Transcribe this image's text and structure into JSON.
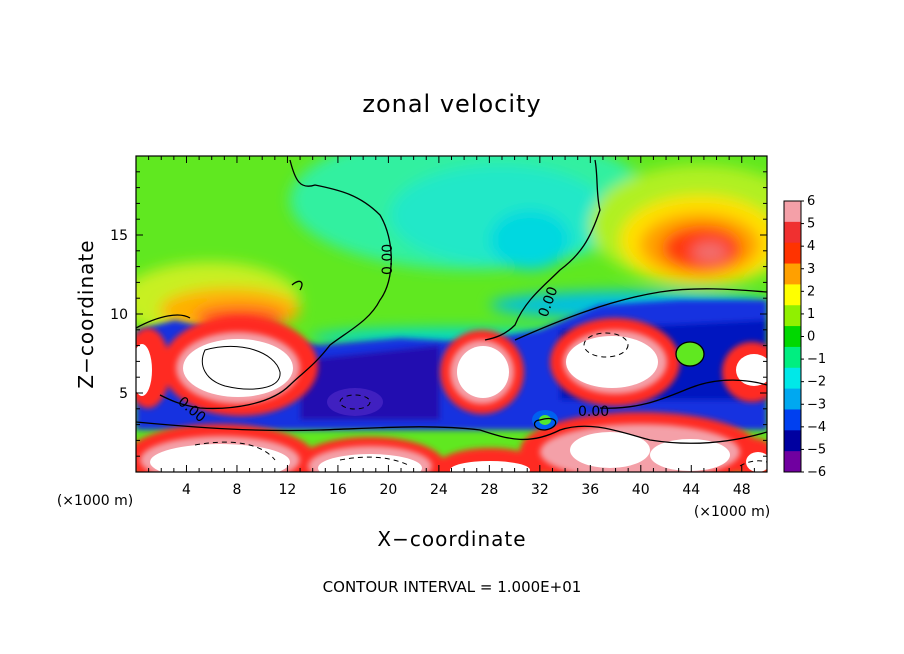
{
  "chart_data": {
    "type": "heatmap",
    "title": "zonal velocity",
    "xlabel": "X−coordinate",
    "ylabel": "Z−coordinate",
    "xlim": [
      0,
      50
    ],
    "ylim": [
      0,
      20
    ],
    "x_ticks": [
      4,
      8,
      12,
      16,
      20,
      24,
      28,
      32,
      36,
      40,
      44,
      48
    ],
    "y_ticks": [
      5,
      10,
      15
    ],
    "x_unit_label": "(×1000 m)",
    "x_unit_label_right": "(×1000 m)",
    "colorbar": {
      "range": [
        -6,
        6
      ],
      "ticks": [
        6,
        5,
        4,
        3,
        2,
        1,
        0,
        -1,
        -2,
        -3,
        -4,
        -5,
        -6
      ],
      "tick_labels": [
        "6",
        "5",
        "4",
        "3",
        "2",
        "1",
        "0",
        "−1",
        "−2",
        "−3",
        "−4",
        "−5",
        "−6"
      ],
      "colors": [
        "#f4a0a8",
        "#f03030",
        "#ff3300",
        "#ffa000",
        "#ffff00",
        "#90f000",
        "#00d800",
        "#00ee80",
        "#00e8e8",
        "#00a8f0",
        "#0040f0",
        "#0000a0",
        "#7000a0"
      ]
    },
    "contour_labels": [
      "0.00",
      "0.00",
      "0.00",
      "0.00"
    ],
    "contour_interval_text": "CONTOUR INTERVAL = 1.000E+01"
  }
}
